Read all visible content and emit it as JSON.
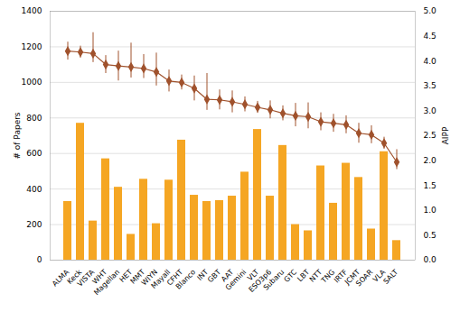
{
  "chart_data": {
    "type": "bar",
    "categories": [
      "ALMA",
      "Keck",
      "VISTA",
      "WHT",
      "Magellan",
      "HET",
      "MMT",
      "WIYN",
      "Mayall",
      "CFHT",
      "Blanco",
      "INT",
      "GBT",
      "AAT",
      "Gemini",
      "VLT",
      "ESO3p6",
      "Subaru",
      "GTC",
      "LBT",
      "NTT",
      "TNG",
      "IRTF",
      "JCMT",
      "SOAR",
      "VLA",
      "SALT"
    ],
    "series": [
      {
        "type": "bar",
        "color": "#F5A623",
        "values": [
          330,
          770,
          220,
          570,
          410,
          145,
          455,
          205,
          450,
          675,
          365,
          330,
          335,
          360,
          495,
          735,
          360,
          645,
          200,
          165,
          530,
          320,
          545,
          465,
          175,
          610,
          110
        ]
      },
      {
        "type": "line",
        "axis": "y2",
        "color": "#A0522D",
        "marker": "diamond",
        "values": [
          4.2,
          4.18,
          4.15,
          3.93,
          3.9,
          3.88,
          3.85,
          3.78,
          3.6,
          3.57,
          3.45,
          3.23,
          3.22,
          3.18,
          3.13,
          3.07,
          3.02,
          2.95,
          2.9,
          2.88,
          2.78,
          2.75,
          2.72,
          2.55,
          2.52,
          2.35,
          1.97
        ],
        "error_low": [
          0.18,
          0.12,
          0.18,
          0.18,
          0.3,
          0.22,
          0.2,
          0.28,
          0.22,
          0.15,
          0.25,
          0.22,
          0.2,
          0.22,
          0.15,
          0.12,
          0.18,
          0.15,
          0.22,
          0.24,
          0.18,
          0.18,
          0.18,
          0.2,
          0.18,
          0.12,
          0.15
        ],
        "error_high": [
          0.18,
          0.12,
          0.42,
          0.18,
          0.3,
          0.48,
          0.28,
          0.38,
          0.22,
          0.15,
          0.25,
          0.52,
          0.2,
          0.22,
          0.15,
          0.12,
          0.18,
          0.15,
          0.25,
          0.28,
          0.18,
          0.18,
          0.18,
          0.2,
          0.18,
          0.12,
          0.25
        ]
      }
    ],
    "ylabel": "# of Papers",
    "y2label": "AIPP",
    "ylim": [
      0,
      1400
    ],
    "yticks": [
      0,
      200,
      400,
      600,
      800,
      1000,
      1200,
      1400
    ],
    "y2lim": [
      0,
      5
    ],
    "y2ticks": [
      {
        "value": 0,
        "label": "0.0"
      },
      0.5,
      {
        "value": 1.0,
        "label": "1.0"
      },
      1.5,
      {
        "value": 2.0,
        "label": "2.0"
      },
      2.5,
      {
        "value": 3.0,
        "label": "3.0"
      },
      3.5,
      {
        "value": 4.0,
        "label": "4.0"
      },
      4.5,
      {
        "value": 5.0,
        "label": "5.0"
      }
    ],
    "grid": true
  }
}
